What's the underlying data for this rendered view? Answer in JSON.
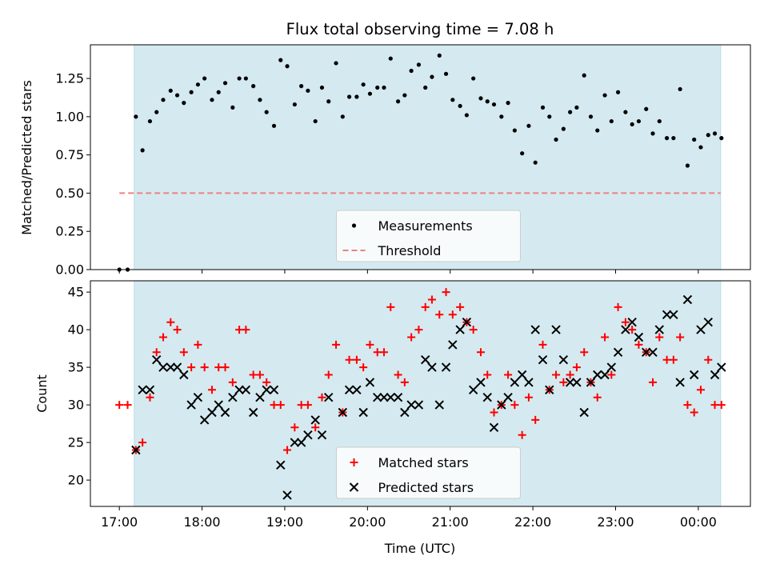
{
  "chart_data": [
    {
      "type": "scatter",
      "title": "Flux total observing time = 7.08 h",
      "ylabel": "Matched/Predicted stars",
      "xlim": [
        16.65,
        24.63
      ],
      "ylim": [
        0,
        1.47
      ],
      "yticks": [
        0.0,
        0.25,
        0.5,
        0.75,
        1.0,
        1.25
      ],
      "ytick_labels": [
        "0.00",
        "0.25",
        "0.50",
        "0.75",
        "1.00",
        "1.25"
      ],
      "observing_window": [
        17.18,
        24.27
      ],
      "observing_color": "#d4eaf0",
      "threshold": {
        "name": "Threshold",
        "value": 0.5,
        "x_range": [
          17.0,
          24.27
        ],
        "color": "#f08080"
      },
      "legend": {
        "location": "lower center",
        "entries": [
          "Measurements",
          "Threshold"
        ]
      },
      "series": [
        {
          "name": "Measurements",
          "marker": "dot",
          "color": "#000000",
          "points": [
            [
              17.0,
              0.0
            ],
            [
              17.1,
              0.0
            ],
            [
              17.2,
              1.0
            ],
            [
              17.28,
              0.78
            ],
            [
              17.37,
              0.97
            ],
            [
              17.45,
              1.03
            ],
            [
              17.53,
              1.11
            ],
            [
              17.62,
              1.17
            ],
            [
              17.7,
              1.14
            ],
            [
              17.78,
              1.09
            ],
            [
              17.87,
              1.16
            ],
            [
              17.95,
              1.21
            ],
            [
              18.03,
              1.25
            ],
            [
              18.12,
              1.11
            ],
            [
              18.2,
              1.16
            ],
            [
              18.28,
              1.22
            ],
            [
              18.37,
              1.06
            ],
            [
              18.45,
              1.25
            ],
            [
              18.53,
              1.25
            ],
            [
              18.62,
              1.2
            ],
            [
              18.7,
              1.11
            ],
            [
              18.78,
              1.03
            ],
            [
              18.87,
              0.94
            ],
            [
              18.95,
              1.37
            ],
            [
              19.03,
              1.33
            ],
            [
              19.12,
              1.08
            ],
            [
              19.2,
              1.2
            ],
            [
              19.28,
              1.17
            ],
            [
              19.37,
              0.97
            ],
            [
              19.45,
              1.19
            ],
            [
              19.53,
              1.1
            ],
            [
              19.62,
              1.35
            ],
            [
              19.7,
              1.0
            ],
            [
              19.78,
              1.13
            ],
            [
              19.87,
              1.13
            ],
            [
              19.95,
              1.21
            ],
            [
              20.03,
              1.15
            ],
            [
              20.12,
              1.19
            ],
            [
              20.2,
              1.19
            ],
            [
              20.28,
              1.38
            ],
            [
              20.37,
              1.1
            ],
            [
              20.45,
              1.14
            ],
            [
              20.53,
              1.3
            ],
            [
              20.62,
              1.34
            ],
            [
              20.7,
              1.19
            ],
            [
              20.78,
              1.26
            ],
            [
              20.87,
              1.4
            ],
            [
              20.95,
              1.28
            ],
            [
              21.03,
              1.11
            ],
            [
              21.12,
              1.07
            ],
            [
              21.2,
              1.01
            ],
            [
              21.28,
              1.25
            ],
            [
              21.37,
              1.12
            ],
            [
              21.45,
              1.1
            ],
            [
              21.53,
              1.08
            ],
            [
              21.62,
              1.0
            ],
            [
              21.7,
              1.09
            ],
            [
              21.78,
              0.91
            ],
            [
              21.87,
              0.76
            ],
            [
              21.95,
              0.94
            ],
            [
              22.03,
              0.7
            ],
            [
              22.12,
              1.06
            ],
            [
              22.2,
              1.0
            ],
            [
              22.28,
              0.85
            ],
            [
              22.37,
              0.92
            ],
            [
              22.45,
              1.03
            ],
            [
              22.53,
              1.06
            ],
            [
              22.62,
              1.27
            ],
            [
              22.7,
              1.0
            ],
            [
              22.78,
              0.91
            ],
            [
              22.87,
              1.14
            ],
            [
              22.95,
              0.97
            ],
            [
              23.03,
              1.16
            ],
            [
              23.12,
              1.03
            ],
            [
              23.2,
              0.95
            ],
            [
              23.28,
              0.97
            ],
            [
              23.37,
              1.05
            ],
            [
              23.45,
              0.89
            ],
            [
              23.53,
              0.97
            ],
            [
              23.62,
              0.86
            ],
            [
              23.7,
              0.86
            ],
            [
              23.78,
              1.18
            ],
            [
              23.87,
              0.68
            ],
            [
              23.95,
              0.85
            ],
            [
              24.03,
              0.8
            ],
            [
              24.12,
              0.88
            ],
            [
              24.2,
              0.89
            ],
            [
              24.28,
              0.86
            ]
          ]
        }
      ]
    },
    {
      "type": "scatter",
      "xlabel": "Time (UTC)",
      "ylabel": "Count",
      "xlim": [
        16.65,
        24.63
      ],
      "ylim": [
        16.5,
        46.5
      ],
      "xticks": [
        17,
        18,
        19,
        20,
        21,
        22,
        23,
        24
      ],
      "xtick_labels": [
        "17:00",
        "18:00",
        "19:00",
        "20:00",
        "21:00",
        "22:00",
        "23:00",
        "00:00"
      ],
      "yticks": [
        20,
        25,
        30,
        35,
        40,
        45
      ],
      "ytick_labels": [
        "20",
        "25",
        "30",
        "35",
        "40",
        "45"
      ],
      "observing_window": [
        17.18,
        24.27
      ],
      "legend": {
        "location": "lower center",
        "entries": [
          "Matched stars",
          "Predicted stars"
        ]
      },
      "series": [
        {
          "name": "Matched stars",
          "marker": "plus",
          "color": "#ff0000",
          "points": [
            [
              17.0,
              30
            ],
            [
              17.1,
              30
            ],
            [
              17.2,
              24
            ],
            [
              17.28,
              25
            ],
            [
              17.37,
              31
            ],
            [
              17.45,
              37
            ],
            [
              17.53,
              39
            ],
            [
              17.62,
              41
            ],
            [
              17.7,
              40
            ],
            [
              17.78,
              37
            ],
            [
              17.87,
              35
            ],
            [
              17.95,
              38
            ],
            [
              18.03,
              35
            ],
            [
              18.12,
              32
            ],
            [
              18.2,
              35
            ],
            [
              18.28,
              35
            ],
            [
              18.37,
              33
            ],
            [
              18.45,
              40
            ],
            [
              18.53,
              40
            ],
            [
              18.62,
              34
            ],
            [
              18.7,
              34
            ],
            [
              18.78,
              33
            ],
            [
              18.87,
              30
            ],
            [
              18.95,
              30
            ],
            [
              19.03,
              24
            ],
            [
              19.12,
              27
            ],
            [
              19.2,
              30
            ],
            [
              19.28,
              30
            ],
            [
              19.37,
              27
            ],
            [
              19.45,
              31
            ],
            [
              19.53,
              34
            ],
            [
              19.62,
              38
            ],
            [
              19.7,
              29
            ],
            [
              19.78,
              36
            ],
            [
              19.87,
              36
            ],
            [
              19.95,
              35
            ],
            [
              20.03,
              38
            ],
            [
              20.12,
              37
            ],
            [
              20.2,
              37
            ],
            [
              20.28,
              43
            ],
            [
              20.37,
              34
            ],
            [
              20.45,
              33
            ],
            [
              20.53,
              39
            ],
            [
              20.62,
              40
            ],
            [
              20.7,
              43
            ],
            [
              20.78,
              44
            ],
            [
              20.87,
              42
            ],
            [
              20.95,
              45
            ],
            [
              21.03,
              42
            ],
            [
              21.12,
              43
            ],
            [
              21.2,
              41
            ],
            [
              21.28,
              40
            ],
            [
              21.37,
              37
            ],
            [
              21.45,
              34
            ],
            [
              21.53,
              29
            ],
            [
              21.62,
              30
            ],
            [
              21.7,
              34
            ],
            [
              21.78,
              30
            ],
            [
              21.87,
              26
            ],
            [
              21.95,
              31
            ],
            [
              22.03,
              28
            ],
            [
              22.12,
              38
            ],
            [
              22.2,
              32
            ],
            [
              22.28,
              34
            ],
            [
              22.37,
              33
            ],
            [
              22.45,
              34
            ],
            [
              22.53,
              35
            ],
            [
              22.62,
              37
            ],
            [
              22.7,
              33
            ],
            [
              22.78,
              31
            ],
            [
              22.87,
              39
            ],
            [
              22.95,
              34
            ],
            [
              23.03,
              43
            ],
            [
              23.12,
              41
            ],
            [
              23.2,
              40
            ],
            [
              23.28,
              38
            ],
            [
              23.37,
              37
            ],
            [
              23.45,
              33
            ],
            [
              23.53,
              39
            ],
            [
              23.62,
              36
            ],
            [
              23.7,
              36
            ],
            [
              23.78,
              39
            ],
            [
              23.87,
              30
            ],
            [
              23.95,
              29
            ],
            [
              24.03,
              32
            ],
            [
              24.12,
              36
            ],
            [
              24.2,
              30
            ],
            [
              24.28,
              30
            ]
          ]
        },
        {
          "name": "Predicted stars",
          "marker": "x",
          "color": "#000000",
          "points": [
            [
              17.2,
              24
            ],
            [
              17.28,
              32
            ],
            [
              17.37,
              32
            ],
            [
              17.45,
              36
            ],
            [
              17.53,
              35
            ],
            [
              17.62,
              35
            ],
            [
              17.7,
              35
            ],
            [
              17.78,
              34
            ],
            [
              17.87,
              30
            ],
            [
              17.95,
              31
            ],
            [
              18.03,
              28
            ],
            [
              18.12,
              29
            ],
            [
              18.2,
              30
            ],
            [
              18.28,
              29
            ],
            [
              18.37,
              31
            ],
            [
              18.45,
              32
            ],
            [
              18.53,
              32
            ],
            [
              18.62,
              29
            ],
            [
              18.7,
              31
            ],
            [
              18.78,
              32
            ],
            [
              18.87,
              32
            ],
            [
              18.95,
              22
            ],
            [
              19.03,
              18
            ],
            [
              19.12,
              25
            ],
            [
              19.2,
              25
            ],
            [
              19.28,
              26
            ],
            [
              19.37,
              28
            ],
            [
              19.45,
              26
            ],
            [
              19.53,
              31
            ],
            [
              19.7,
              29
            ],
            [
              19.78,
              32
            ],
            [
              19.87,
              32
            ],
            [
              19.95,
              29
            ],
            [
              20.03,
              33
            ],
            [
              20.12,
              31
            ],
            [
              20.2,
              31
            ],
            [
              20.28,
              31
            ],
            [
              20.37,
              31
            ],
            [
              20.45,
              29
            ],
            [
              20.53,
              30
            ],
            [
              20.62,
              30
            ],
            [
              20.7,
              36
            ],
            [
              20.78,
              35
            ],
            [
              20.87,
              30
            ],
            [
              20.95,
              35
            ],
            [
              21.03,
              38
            ],
            [
              21.12,
              40
            ],
            [
              21.2,
              41
            ],
            [
              21.28,
              32
            ],
            [
              21.37,
              33
            ],
            [
              21.45,
              31
            ],
            [
              21.53,
              27
            ],
            [
              21.62,
              30
            ],
            [
              21.7,
              31
            ],
            [
              21.78,
              33
            ],
            [
              21.87,
              34
            ],
            [
              21.95,
              33
            ],
            [
              22.03,
              40
            ],
            [
              22.12,
              36
            ],
            [
              22.2,
              32
            ],
            [
              22.28,
              40
            ],
            [
              22.37,
              36
            ],
            [
              22.45,
              33
            ],
            [
              22.53,
              33
            ],
            [
              22.62,
              29
            ],
            [
              22.7,
              33
            ],
            [
              22.78,
              34
            ],
            [
              22.87,
              34
            ],
            [
              22.95,
              35
            ],
            [
              23.03,
              37
            ],
            [
              23.12,
              40
            ],
            [
              23.2,
              41
            ],
            [
              23.28,
              39
            ],
            [
              23.37,
              37
            ],
            [
              23.45,
              37
            ],
            [
              23.53,
              40
            ],
            [
              23.62,
              42
            ],
            [
              23.7,
              42
            ],
            [
              23.78,
              33
            ],
            [
              23.87,
              44
            ],
            [
              23.95,
              34
            ],
            [
              24.03,
              40
            ],
            [
              24.12,
              41
            ],
            [
              24.2,
              34
            ],
            [
              24.28,
              35
            ]
          ]
        }
      ]
    }
  ]
}
